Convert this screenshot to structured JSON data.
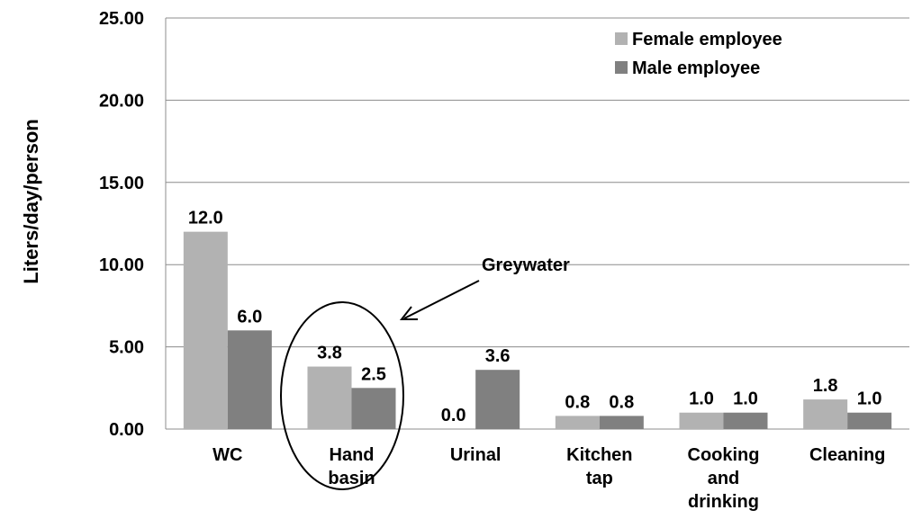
{
  "chart_data": {
    "type": "bar",
    "ylabel": "Liters/day/person",
    "ylim": [
      0,
      25
    ],
    "yticks": [
      "0.00",
      "5.00",
      "10.00",
      "15.00",
      "20.00",
      "25.00"
    ],
    "grid": true,
    "legend_position": "top-right",
    "categories": [
      [
        "WC"
      ],
      [
        "Hand",
        "basin"
      ],
      [
        "Urinal"
      ],
      [
        "Kitchen",
        "tap"
      ],
      [
        "Cooking",
        "and",
        "drinking"
      ],
      [
        "Cleaning"
      ]
    ],
    "series": [
      {
        "name": "Female employee",
        "color": "#b2b2b2",
        "values": [
          12.0,
          3.8,
          0.0,
          0.8,
          1.0,
          1.8
        ],
        "labels": [
          "12.0",
          "3.8",
          "0.0",
          "0.8",
          "1.0",
          "1.8"
        ]
      },
      {
        "name": "Male employee",
        "color": "#808080",
        "values": [
          6.0,
          2.5,
          3.6,
          0.8,
          1.0,
          1.0
        ],
        "labels": [
          "6.0",
          "2.5",
          "3.6",
          "0.8",
          "1.0",
          "1.0"
        ]
      }
    ],
    "annotation": {
      "text": "Greywater",
      "target_category": 1
    }
  }
}
